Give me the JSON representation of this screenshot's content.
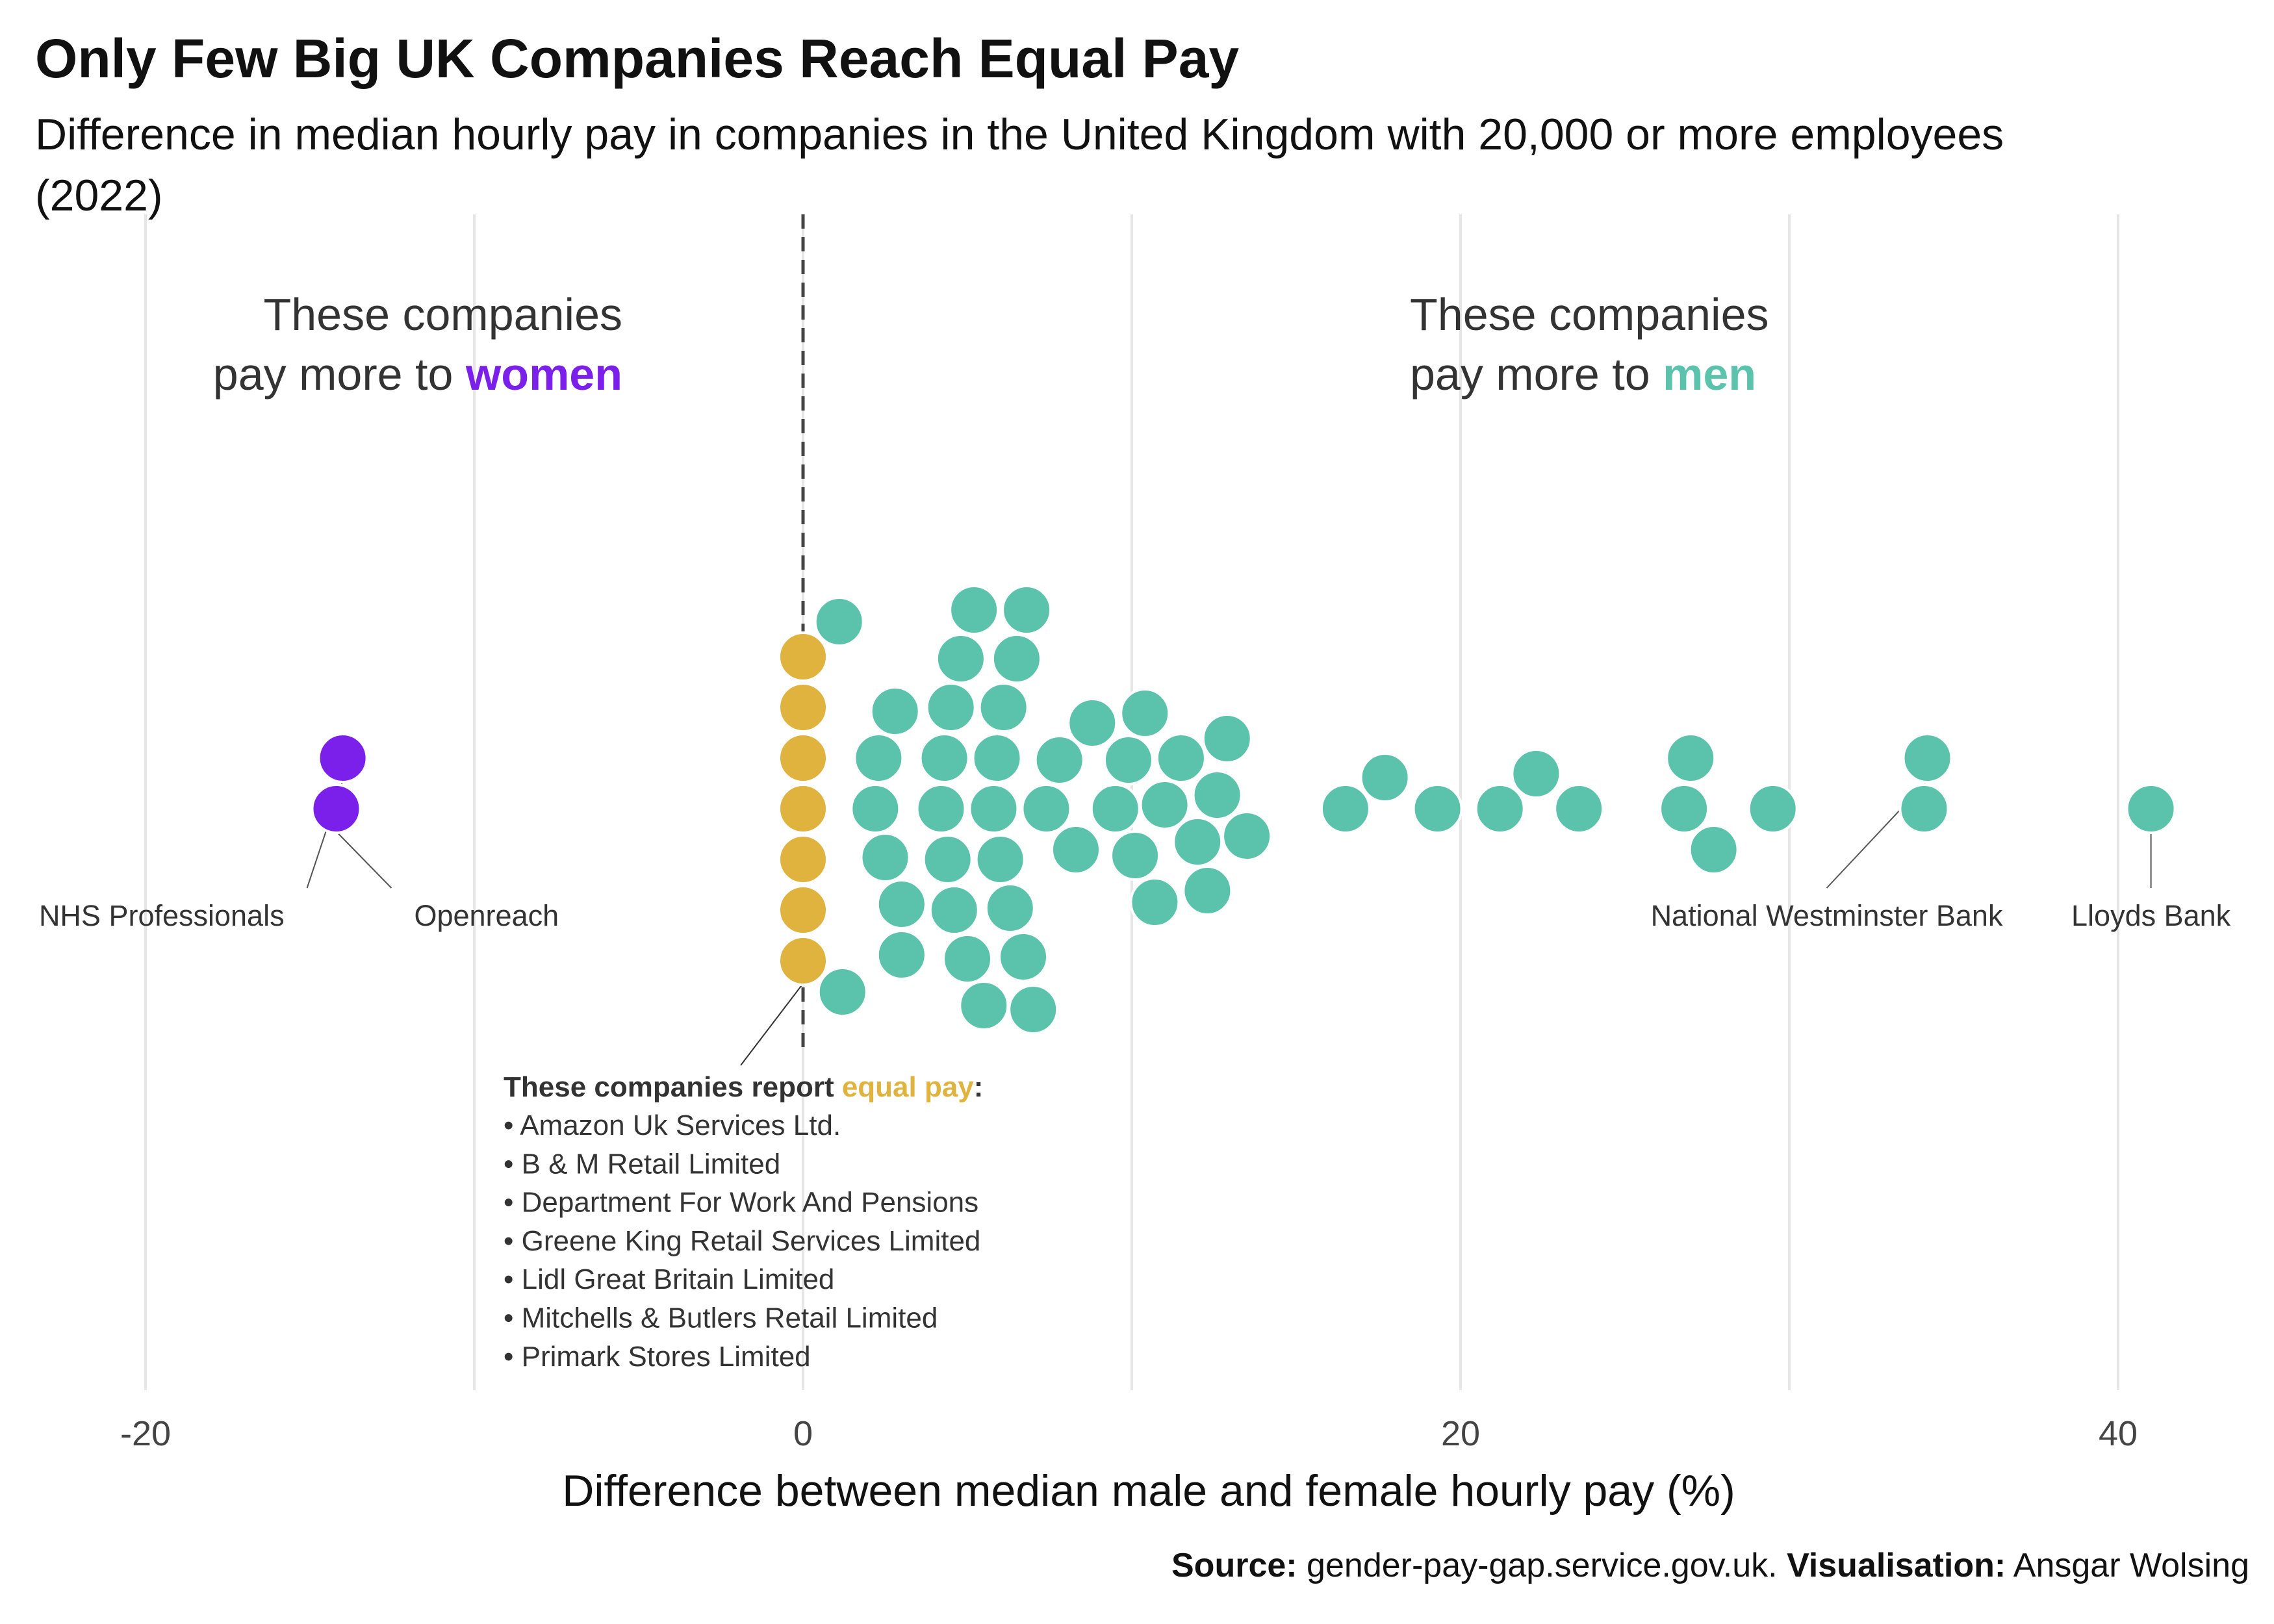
{
  "title": "Only Few Big UK Companies Reach Equal Pay",
  "subtitle": "Difference in median hourly pay in companies in the United Kingdom with 20,000 or more employees (2022)",
  "source": {
    "source_label": "Source:",
    "source_text": " gender-pay-gap.service.gov.uk. ",
    "vis_label": "Visualisation:",
    "vis_text": " Ansgar Wolsing"
  },
  "colors": {
    "women": "#7B1FEB",
    "men": "#5BC3AC",
    "equal": "#E0B33F"
  },
  "chart_data": {
    "type": "scatter",
    "layout": "beeswarm",
    "xlabel": "Difference between median male and female hourly pay (%)",
    "xlim": [
      -22,
      44
    ],
    "x_ticks": [
      -20,
      0,
      20,
      40
    ],
    "x_tick_labels": [
      "-20",
      "0",
      "20",
      "40"
    ],
    "grid": "vertical",
    "reference_line": 0,
    "group_labels": {
      "women_prefix": "These companies",
      "women_line2": "pay more to ",
      "women_word": "women",
      "men_prefix": "These companies",
      "men_line2": "pay more to ",
      "men_word": "men"
    },
    "series": [
      {
        "group": "women",
        "values": [
          -14.2,
          -14.0
        ]
      },
      {
        "group": "equal",
        "values": [
          0,
          0,
          0,
          0,
          0,
          0,
          0
        ]
      },
      {
        "group": "men",
        "values": [
          1.2,
          1.1,
          2.2,
          2.3,
          2.5,
          2.8,
          3.0,
          3.0,
          4.2,
          4.4,
          4.3,
          4.5,
          4.6,
          4.8,
          5.0,
          5.2,
          5.5,
          5.8,
          5.9,
          6.0,
          6.1,
          6.3,
          6.5,
          6.7,
          6.8,
          7.0,
          7.4,
          7.8,
          8.3,
          8.8,
          9.5,
          9.9,
          10.1,
          10.4,
          10.7,
          11.0,
          11.5,
          12.0,
          12.3,
          12.6,
          12.9,
          13.5,
          16.5,
          17.7,
          19.3,
          21.2,
          22.3,
          23.6,
          26.8,
          27.0,
          27.7,
          29.5,
          34.1,
          34.2,
          41.0
        ]
      }
    ],
    "annotations": [
      {
        "label": "NHS Professionals",
        "x": -14.0
      },
      {
        "label": "Openreach",
        "x": -14.2
      },
      {
        "label": "National Westminster Bank",
        "x": 34.2
      },
      {
        "label": "Lloyds Bank",
        "x": 41.0
      }
    ],
    "equal_pay_box": {
      "heading_prefix": "These companies report ",
      "heading_highlight": "equal pay",
      "heading_suffix": ":",
      "companies": [
        "• Amazon Uk Services Ltd.",
        "• B & M Retail Limited",
        "• Department For Work And Pensions",
        "• Greene King Retail Services Limited",
        "• Lidl Great Britain Limited",
        "• Mitchells & Butlers Retail Limited",
        "• Primark Stores Limited"
      ]
    }
  }
}
